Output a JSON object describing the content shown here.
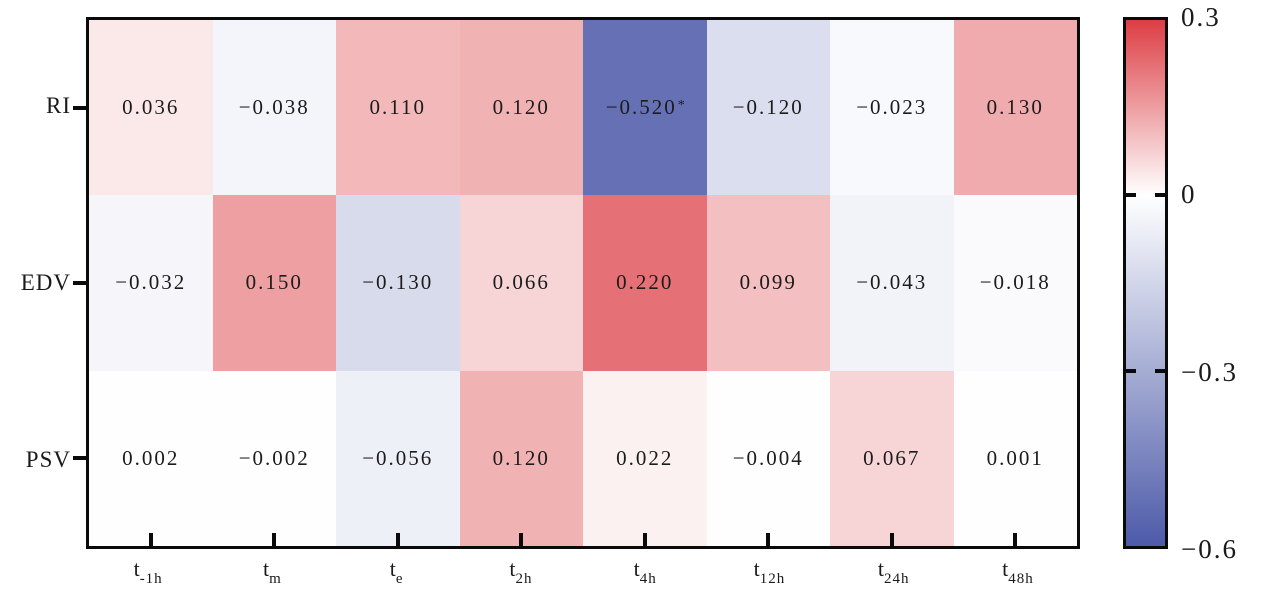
{
  "chart_data": {
    "type": "heatmap",
    "rows": [
      "RI",
      "EDV",
      "PSV"
    ],
    "columns": [
      {
        "main": "t",
        "sub": "-1h"
      },
      {
        "main": "t",
        "sub": "m"
      },
      {
        "main": "t",
        "sub": "e"
      },
      {
        "main": "t",
        "sub": "2h"
      },
      {
        "main": "t",
        "sub": "4h"
      },
      {
        "main": "t",
        "sub": "12h"
      },
      {
        "main": "t",
        "sub": "24h"
      },
      {
        "main": "t",
        "sub": "48h"
      }
    ],
    "values": [
      [
        0.036,
        -0.038,
        0.11,
        0.12,
        -0.52,
        -0.12,
        -0.023,
        0.13
      ],
      [
        -0.032,
        0.15,
        -0.13,
        0.066,
        0.22,
        0.099,
        -0.043,
        -0.018
      ],
      [
        0.002,
        -0.002,
        -0.056,
        0.12,
        0.022,
        -0.004,
        0.067,
        0.001
      ]
    ],
    "cell_labels": [
      [
        "0.036",
        "−0.038",
        "0.110",
        "0.120",
        "−0.520",
        "−0.120",
        "−0.023",
        "0.130"
      ],
      [
        "−0.032",
        "0.150",
        "−0.130",
        "0.066",
        "0.220",
        "0.099",
        "−0.043",
        "−0.018"
      ],
      [
        "0.002",
        "−0.002",
        "−0.056",
        "0.120",
        "0.022",
        "−0.004",
        "0.067",
        "0.001"
      ]
    ],
    "cell_superscripts": [
      [
        "",
        "",
        "",
        "",
        "*",
        "",
        "",
        ""
      ],
      [
        "",
        "",
        "",
        "",
        "",
        "",
        "",
        ""
      ],
      [
        "",
        "",
        "",
        "",
        "",
        "",
        "",
        ""
      ]
    ],
    "colorscale": {
      "vmin": -0.6,
      "vmax": 0.3,
      "center": 0,
      "color_min": "#4d5ba9",
      "color_center": "#ffffff",
      "color_max": "#dc3e44"
    },
    "colorbar_ticks": [
      {
        "label": "0.3",
        "value": 0.3
      },
      {
        "label": "0",
        "value": 0
      },
      {
        "label": "−0.3",
        "value": -0.3
      },
      {
        "label": "−0.6",
        "value": -0.6
      }
    ],
    "grid": false,
    "legend": "colorbar-right"
  }
}
